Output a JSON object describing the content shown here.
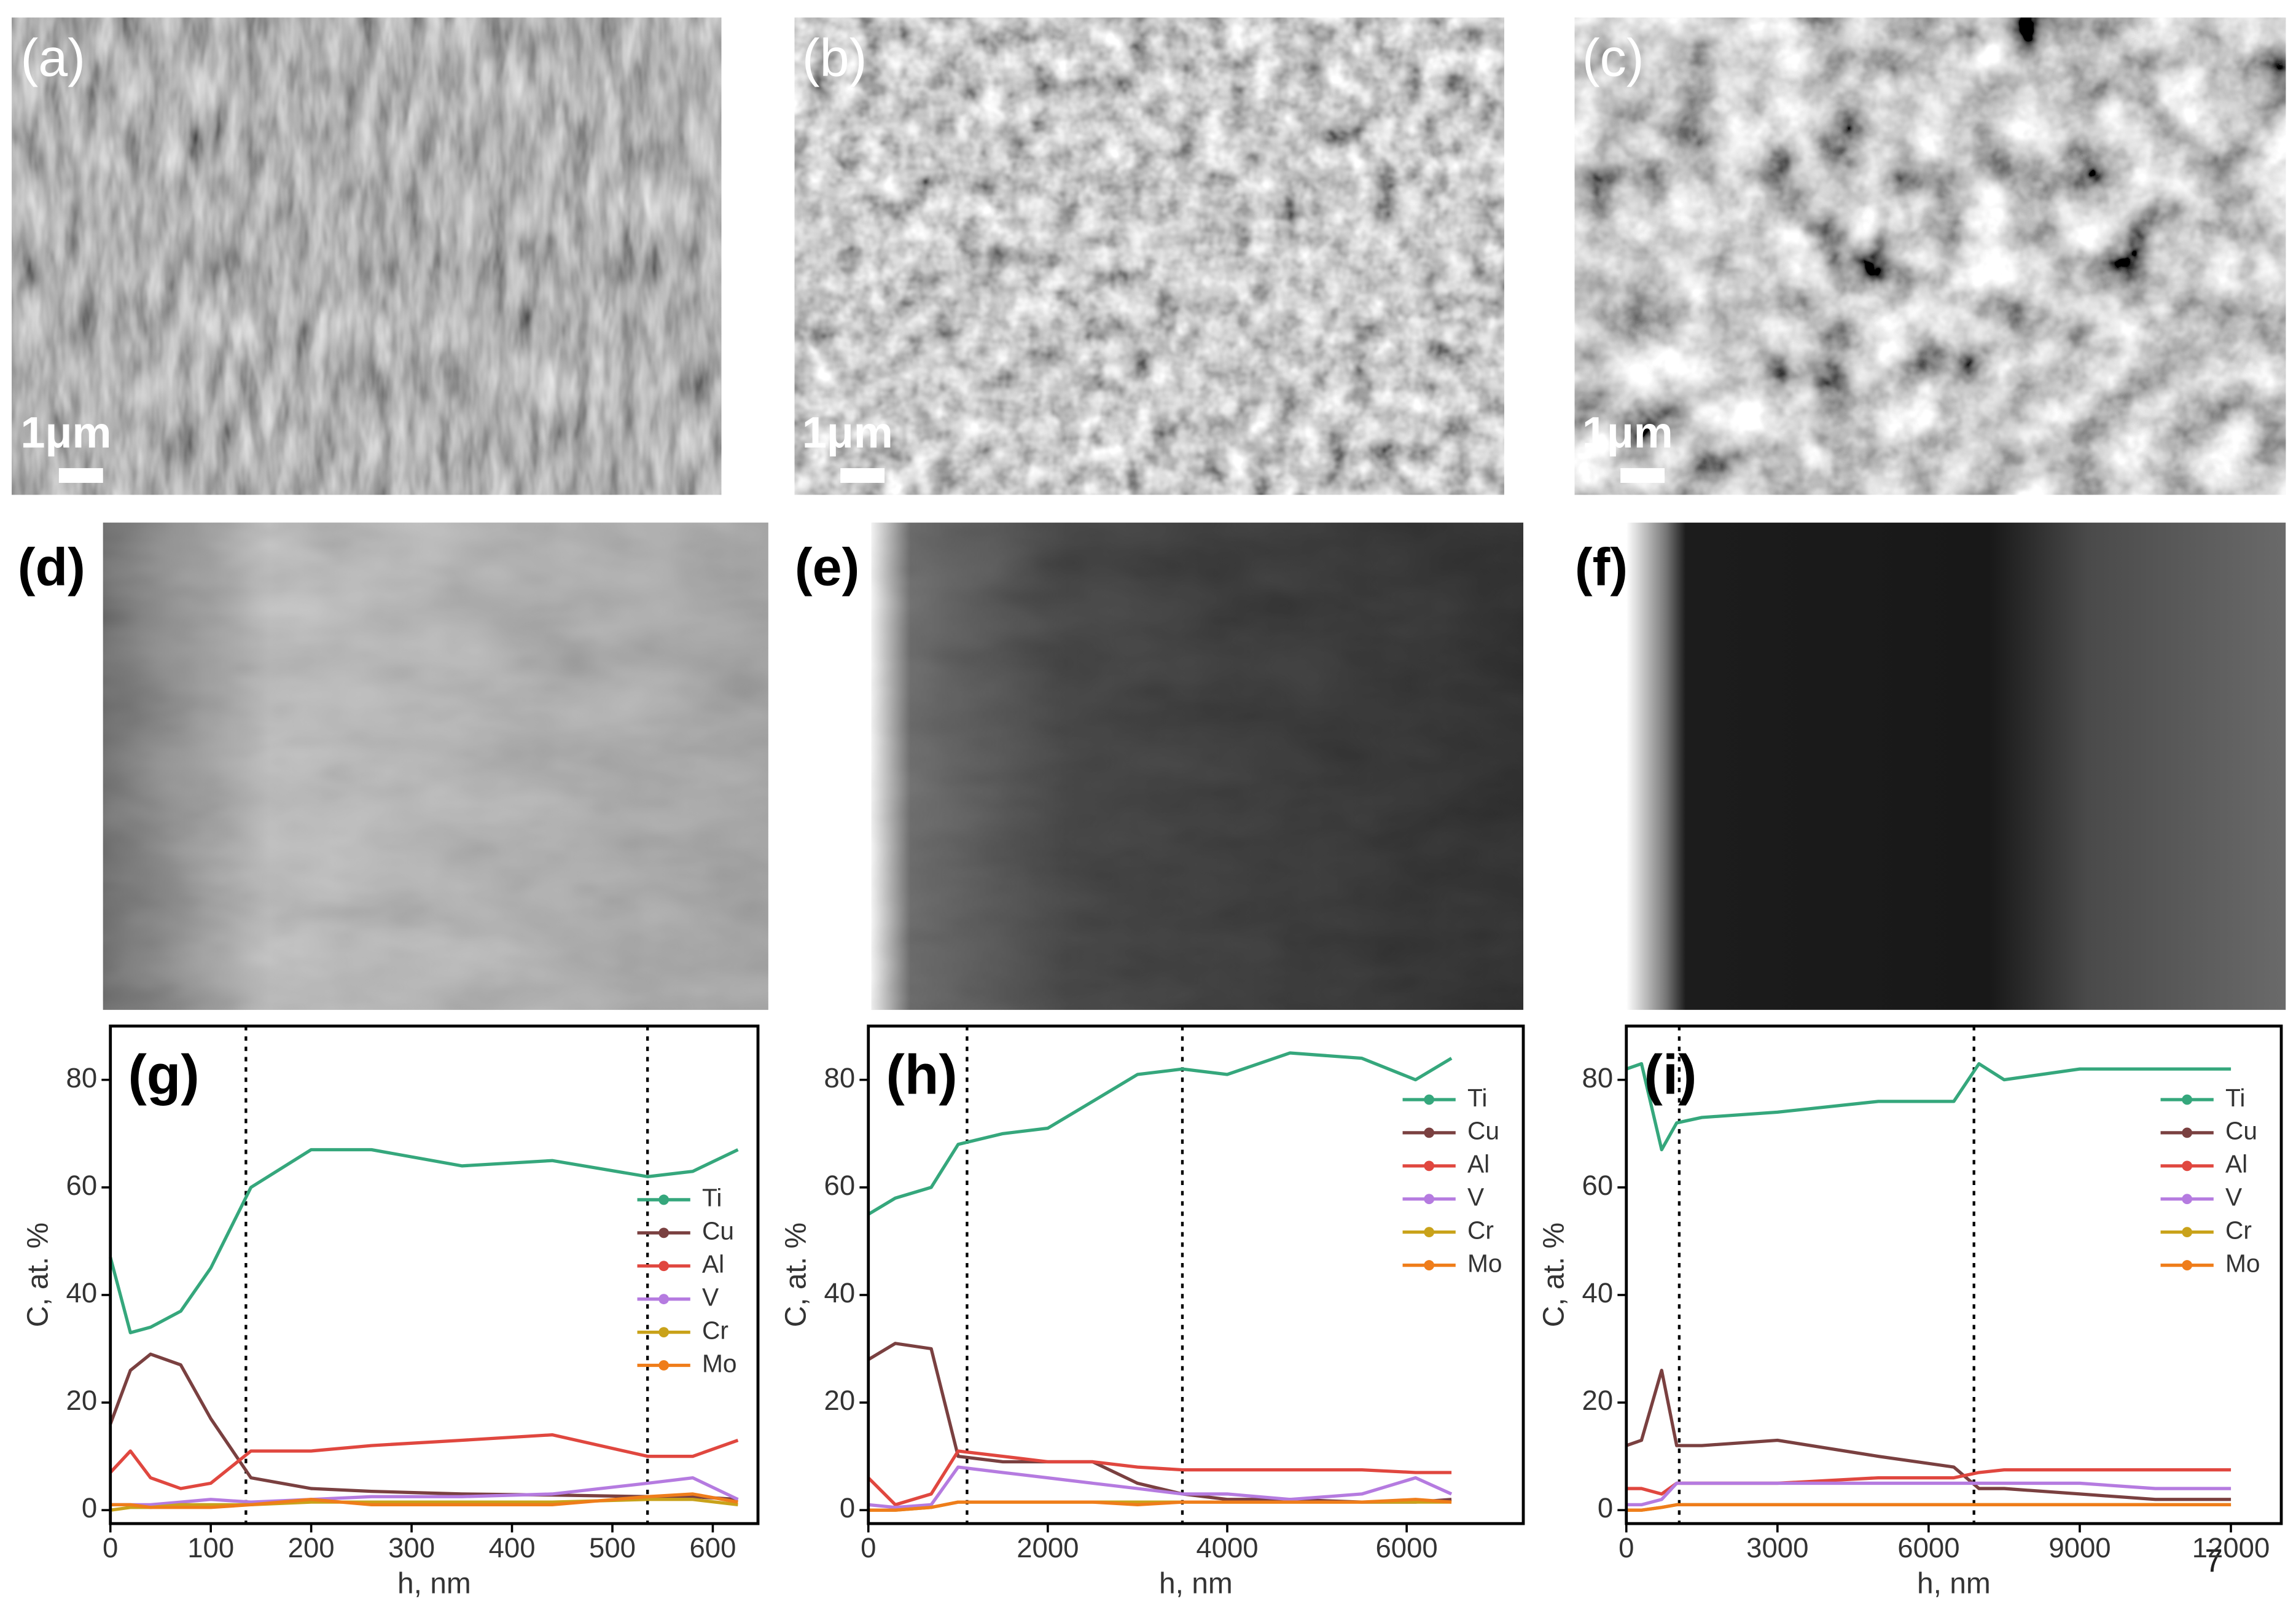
{
  "panels": [
    {
      "label": "(a)",
      "scale_bar": "1μm"
    },
    {
      "label": "(b)",
      "scale_bar": "1μm"
    },
    {
      "label": "(c)",
      "scale_bar": "1μm"
    },
    {
      "label": "(d)"
    },
    {
      "label": "(e)"
    },
    {
      "label": "(f)"
    }
  ],
  "page_number": "7",
  "chart_data": [
    {
      "type": "line",
      "panel_label": "(g)",
      "x_label": "h, nm",
      "y_label": "C, at. %",
      "xlim": [
        0,
        645
      ],
      "xticks": [
        0,
        100,
        200,
        300,
        400,
        500,
        600
      ],
      "ylim": [
        -2.5,
        90
      ],
      "yticks": [
        0,
        20,
        40,
        60,
        80
      ],
      "vlines": [
        135,
        535
      ],
      "legend": "center right",
      "x": [
        0,
        20,
        40,
        70,
        100,
        140,
        200,
        260,
        350,
        440,
        535,
        580,
        625
      ],
      "series": [
        {
          "name": "Ti",
          "color": "#35a77c",
          "values": [
            47,
            33,
            34,
            37,
            45,
            60,
            67,
            67,
            64,
            65,
            62,
            63,
            67
          ]
        },
        {
          "name": "Cu",
          "color": "#7a4040",
          "values": [
            16,
            26,
            29,
            27,
            17,
            6,
            4,
            3.5,
            3,
            2.8,
            2.5,
            2.5,
            2
          ]
        },
        {
          "name": "Al",
          "color": "#e0473f",
          "values": [
            7,
            11,
            6,
            4,
            5,
            11,
            11,
            12,
            13,
            14,
            10,
            10,
            13
          ]
        },
        {
          "name": "V",
          "color": "#b57be0",
          "values": [
            1,
            1,
            1,
            1.5,
            2,
            1.5,
            2,
            2.5,
            2.5,
            3,
            5,
            6,
            2
          ]
        },
        {
          "name": "Cr",
          "color": "#c9a21a",
          "values": [
            0,
            0.5,
            0.5,
            1,
            1,
            1,
            1.5,
            1.5,
            1.5,
            1.5,
            2,
            2,
            1
          ]
        },
        {
          "name": "Mo",
          "color": "#ef7d1a",
          "values": [
            1,
            1,
            0.5,
            0.5,
            0.5,
            1,
            2,
            1,
            1,
            1,
            2.5,
            3,
            1.5
          ]
        }
      ]
    },
    {
      "type": "line",
      "panel_label": "(h)",
      "x_label": "h, nm",
      "y_label": "C, at. %",
      "xlim": [
        0,
        7300
      ],
      "xticks": [
        0,
        2000,
        4000,
        6000
      ],
      "ylim": [
        -2.5,
        90
      ],
      "yticks": [
        0,
        20,
        40,
        60,
        80
      ],
      "vlines": [
        1100,
        3500
      ],
      "legend": "upper right",
      "x": [
        0,
        300,
        700,
        1000,
        1500,
        2000,
        2500,
        3000,
        3500,
        4000,
        4700,
        5500,
        6100,
        6500
      ],
      "series": [
        {
          "name": "Ti",
          "color": "#35a77c",
          "values": [
            55,
            58,
            60,
            68,
            70,
            71,
            76,
            81,
            82,
            81,
            85,
            84,
            80,
            84
          ]
        },
        {
          "name": "Cu",
          "color": "#7a4040",
          "values": [
            28,
            31,
            30,
            10,
            9,
            9,
            9,
            5,
            3,
            2,
            2,
            1.5,
            1.5,
            2
          ]
        },
        {
          "name": "Al",
          "color": "#e0473f",
          "values": [
            6,
            1,
            3,
            11,
            10,
            9,
            9,
            8,
            7.5,
            7.5,
            7.5,
            7.5,
            7,
            7
          ]
        },
        {
          "name": "V",
          "color": "#b57be0",
          "values": [
            1,
            0.5,
            1,
            8,
            7,
            6,
            5,
            4,
            3,
            3,
            2,
            3,
            6,
            3
          ]
        },
        {
          "name": "Cr",
          "color": "#c9a21a",
          "values": [
            0,
            0,
            0.5,
            1.5,
            1.5,
            1.5,
            1.5,
            1.5,
            1.5,
            1.5,
            1.5,
            1.5,
            1.5,
            1.5
          ]
        },
        {
          "name": "Mo",
          "color": "#ef7d1a",
          "values": [
            0,
            0,
            0.5,
            1.5,
            1.5,
            1.5,
            1.5,
            1,
            1.5,
            1.5,
            1.5,
            1.5,
            2,
            1.5
          ]
        }
      ]
    },
    {
      "type": "line",
      "panel_label": "(i)",
      "x_label": "h, nm",
      "y_label": "C, at. %",
      "xlim": [
        0,
        13000
      ],
      "xticks": [
        0,
        3000,
        6000,
        9000,
        12000
      ],
      "ylim": [
        -2.5,
        90
      ],
      "yticks": [
        0,
        20,
        40,
        60,
        80
      ],
      "vlines": [
        1050,
        6900
      ],
      "legend": "upper right",
      "x": [
        0,
        300,
        700,
        1000,
        1500,
        3000,
        5000,
        6500,
        7000,
        7500,
        9000,
        10500,
        12000
      ],
      "series": [
        {
          "name": "Ti",
          "color": "#35a77c",
          "values": [
            82,
            83,
            67,
            72,
            73,
            74,
            76,
            76,
            83,
            80,
            82,
            82,
            82
          ]
        },
        {
          "name": "Cu",
          "color": "#7a4040",
          "values": [
            12,
            13,
            26,
            12,
            12,
            13,
            10,
            8,
            4,
            4,
            3,
            2,
            2
          ]
        },
        {
          "name": "Al",
          "color": "#e0473f",
          "values": [
            4,
            4,
            3,
            5,
            5,
            5,
            6,
            6,
            7,
            7.5,
            7.5,
            7.5,
            7.5
          ]
        },
        {
          "name": "V",
          "color": "#b57be0",
          "values": [
            1,
            1,
            2,
            5,
            5,
            5,
            5,
            5,
            5,
            5,
            5,
            4,
            4
          ]
        },
        {
          "name": "Cr",
          "color": "#c9a21a",
          "values": [
            0,
            0,
            0.5,
            1,
            1,
            1,
            1,
            1,
            1,
            1,
            1,
            1,
            1
          ]
        },
        {
          "name": "Mo",
          "color": "#ef7d1a",
          "values": [
            0,
            0,
            0.5,
            1,
            1,
            1,
            1,
            1,
            1,
            1,
            1,
            1,
            1
          ]
        }
      ]
    }
  ]
}
